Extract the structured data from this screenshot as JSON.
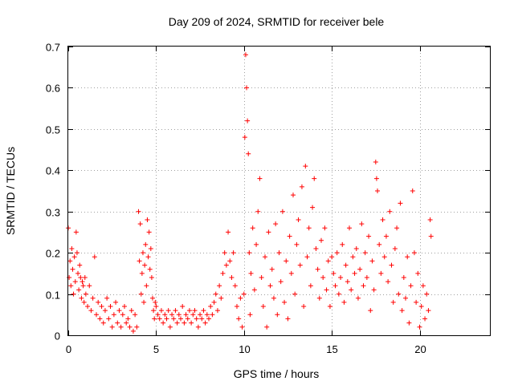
{
  "chart_data": {
    "type": "scatter",
    "title": "Day 209 of 2024, SRMTID for receiver bele",
    "xlabel": "GPS time / hours",
    "ylabel": "SRMTID / TECUs",
    "xlim": [
      0,
      24
    ],
    "ylim": [
      0,
      0.7
    ],
    "xticks": [
      0,
      5,
      10,
      15,
      20
    ],
    "yticks": [
      0,
      0.1,
      0.2,
      0.3,
      0.4,
      0.5,
      0.6,
      0.7
    ],
    "xtick_labels": [
      "0",
      "5",
      "10",
      "15",
      "20"
    ],
    "ytick_labels": [
      "0",
      "0.1",
      "0.2",
      "0.3",
      "0.4",
      "0.5",
      "0.6",
      "0.7"
    ],
    "grid": true,
    "marker": "+",
    "color": "#ff0000",
    "series": [
      {
        "name": "SRMTID",
        "points": [
          [
            0.0,
            0.26
          ],
          [
            0.05,
            0.14
          ],
          [
            0.1,
            0.18
          ],
          [
            0.15,
            0.12
          ],
          [
            0.2,
            0.21
          ],
          [
            0.25,
            0.16
          ],
          [
            0.3,
            0.1
          ],
          [
            0.35,
            0.19
          ],
          [
            0.4,
            0.13
          ],
          [
            0.45,
            0.25
          ],
          [
            0.5,
            0.2
          ],
          [
            0.55,
            0.15
          ],
          [
            0.6,
            0.11
          ],
          [
            0.65,
            0.17
          ],
          [
            0.7,
            0.14
          ],
          [
            0.75,
            0.09
          ],
          [
            0.8,
            0.13
          ],
          [
            0.85,
            0.12
          ],
          [
            0.9,
            0.08
          ],
          [
            0.95,
            0.14
          ],
          [
            1.0,
            0.1
          ],
          [
            1.1,
            0.07
          ],
          [
            1.2,
            0.12
          ],
          [
            1.3,
            0.06
          ],
          [
            1.4,
            0.09
          ],
          [
            1.5,
            0.19
          ],
          [
            1.6,
            0.05
          ],
          [
            1.7,
            0.08
          ],
          [
            1.8,
            0.04
          ],
          [
            1.9,
            0.07
          ],
          [
            2.0,
            0.03
          ],
          [
            2.1,
            0.06
          ],
          [
            2.2,
            0.09
          ],
          [
            2.3,
            0.04
          ],
          [
            2.4,
            0.07
          ],
          [
            2.5,
            0.02
          ],
          [
            2.6,
            0.05
          ],
          [
            2.7,
            0.08
          ],
          [
            2.8,
            0.03
          ],
          [
            2.9,
            0.06
          ],
          [
            3.0,
            0.02
          ],
          [
            3.1,
            0.05
          ],
          [
            3.2,
            0.07
          ],
          [
            3.3,
            0.03
          ],
          [
            3.4,
            0.04
          ],
          [
            3.5,
            0.02
          ],
          [
            3.6,
            0.06
          ],
          [
            3.7,
            0.01
          ],
          [
            3.8,
            0.05
          ],
          [
            3.9,
            0.02
          ],
          [
            4.0,
            0.3
          ],
          [
            4.05,
            0.18
          ],
          [
            4.1,
            0.27
          ],
          [
            4.15,
            0.1
          ],
          [
            4.2,
            0.15
          ],
          [
            4.25,
            0.2
          ],
          [
            4.3,
            0.08
          ],
          [
            4.35,
            0.17
          ],
          [
            4.4,
            0.22
          ],
          [
            4.45,
            0.12
          ],
          [
            4.5,
            0.28
          ],
          [
            4.55,
            0.19
          ],
          [
            4.6,
            0.25
          ],
          [
            4.65,
            0.16
          ],
          [
            4.7,
            0.21
          ],
          [
            4.75,
            0.14
          ],
          [
            4.8,
            0.09
          ],
          [
            4.85,
            0.06
          ],
          [
            4.9,
            0.04
          ],
          [
            4.95,
            0.08
          ],
          [
            5.0,
            0.07
          ],
          [
            5.1,
            0.05
          ],
          [
            5.2,
            0.04
          ],
          [
            5.3,
            0.06
          ],
          [
            5.4,
            0.03
          ],
          [
            5.5,
            0.05
          ],
          [
            5.6,
            0.04
          ],
          [
            5.7,
            0.06
          ],
          [
            5.8,
            0.02
          ],
          [
            5.9,
            0.05
          ],
          [
            6.0,
            0.04
          ],
          [
            6.1,
            0.06
          ],
          [
            6.2,
            0.03
          ],
          [
            6.3,
            0.05
          ],
          [
            6.4,
            0.04
          ],
          [
            6.5,
            0.07
          ],
          [
            6.6,
            0.03
          ],
          [
            6.7,
            0.05
          ],
          [
            6.8,
            0.04
          ],
          [
            6.9,
            0.06
          ],
          [
            7.0,
            0.03
          ],
          [
            7.1,
            0.05
          ],
          [
            7.2,
            0.06
          ],
          [
            7.3,
            0.04
          ],
          [
            7.4,
            0.02
          ],
          [
            7.5,
            0.05
          ],
          [
            7.6,
            0.04
          ],
          [
            7.7,
            0.06
          ],
          [
            7.8,
            0.03
          ],
          [
            7.9,
            0.05
          ],
          [
            8.0,
            0.04
          ],
          [
            8.1,
            0.07
          ],
          [
            8.2,
            0.05
          ],
          [
            8.3,
            0.08
          ],
          [
            8.4,
            0.1
          ],
          [
            8.5,
            0.06
          ],
          [
            8.6,
            0.12
          ],
          [
            8.7,
            0.09
          ],
          [
            8.8,
            0.15
          ],
          [
            8.9,
            0.2
          ],
          [
            9.0,
            0.17
          ],
          [
            9.1,
            0.25
          ],
          [
            9.2,
            0.18
          ],
          [
            9.3,
            0.14
          ],
          [
            9.4,
            0.2
          ],
          [
            9.5,
            0.12
          ],
          [
            9.6,
            0.07
          ],
          [
            9.7,
            0.04
          ],
          [
            9.8,
            0.09
          ],
          [
            9.9,
            0.02
          ],
          [
            10.0,
            0.1
          ],
          [
            10.05,
            0.48
          ],
          [
            10.1,
            0.68
          ],
          [
            10.15,
            0.6
          ],
          [
            10.2,
            0.52
          ],
          [
            10.25,
            0.44
          ],
          [
            10.3,
            0.2
          ],
          [
            10.35,
            0.05
          ],
          [
            10.4,
            0.15
          ],
          [
            10.5,
            0.26
          ],
          [
            10.6,
            0.11
          ],
          [
            10.7,
            0.22
          ],
          [
            10.8,
            0.3
          ],
          [
            10.9,
            0.38
          ],
          [
            11.0,
            0.14
          ],
          [
            11.1,
            0.07
          ],
          [
            11.2,
            0.19
          ],
          [
            11.3,
            0.02
          ],
          [
            11.4,
            0.25
          ],
          [
            11.5,
            0.12
          ],
          [
            11.6,
            0.16
          ],
          [
            11.7,
            0.09
          ],
          [
            11.8,
            0.27
          ],
          [
            11.9,
            0.05
          ],
          [
            12.0,
            0.2
          ],
          [
            12.1,
            0.13
          ],
          [
            12.2,
            0.3
          ],
          [
            12.3,
            0.08
          ],
          [
            12.4,
            0.18
          ],
          [
            12.5,
            0.04
          ],
          [
            12.6,
            0.24
          ],
          [
            12.7,
            0.15
          ],
          [
            12.8,
            0.34
          ],
          [
            12.9,
            0.1
          ],
          [
            13.0,
            0.22
          ],
          [
            13.1,
            0.28
          ],
          [
            13.2,
            0.17
          ],
          [
            13.3,
            0.36
          ],
          [
            13.4,
            0.07
          ],
          [
            13.5,
            0.41
          ],
          [
            13.6,
            0.19
          ],
          [
            13.7,
            0.26
          ],
          [
            13.8,
            0.12
          ],
          [
            13.9,
            0.31
          ],
          [
            14.0,
            0.38
          ],
          [
            14.1,
            0.21
          ],
          [
            14.2,
            0.16
          ],
          [
            14.3,
            0.09
          ],
          [
            14.4,
            0.23
          ],
          [
            14.5,
            0.14
          ],
          [
            14.6,
            0.26
          ],
          [
            14.7,
            0.11
          ],
          [
            14.8,
            0.18
          ],
          [
            14.9,
            0.07
          ],
          [
            15.0,
            0.19
          ],
          [
            15.1,
            0.15
          ],
          [
            15.2,
            0.12
          ],
          [
            15.3,
            0.2
          ],
          [
            15.4,
            0.1
          ],
          [
            15.5,
            0.14
          ],
          [
            15.6,
            0.22
          ],
          [
            15.7,
            0.08
          ],
          [
            15.8,
            0.17
          ],
          [
            15.9,
            0.13
          ],
          [
            16.0,
            0.26
          ],
          [
            16.1,
            0.11
          ],
          [
            16.2,
            0.19
          ],
          [
            16.3,
            0.15
          ],
          [
            16.4,
            0.21
          ],
          [
            16.5,
            0.09
          ],
          [
            16.6,
            0.16
          ],
          [
            16.7,
            0.27
          ],
          [
            16.8,
            0.12
          ],
          [
            16.9,
            0.2
          ],
          [
            17.0,
            0.14
          ],
          [
            17.1,
            0.24
          ],
          [
            17.2,
            0.06
          ],
          [
            17.3,
            0.18
          ],
          [
            17.4,
            0.11
          ],
          [
            17.5,
            0.42
          ],
          [
            17.55,
            0.38
          ],
          [
            17.6,
            0.35
          ],
          [
            17.7,
            0.22
          ],
          [
            17.8,
            0.15
          ],
          [
            17.9,
            0.28
          ],
          [
            18.0,
            0.19
          ],
          [
            18.1,
            0.24
          ],
          [
            18.2,
            0.13
          ],
          [
            18.3,
            0.3
          ],
          [
            18.4,
            0.17
          ],
          [
            18.5,
            0.08
          ],
          [
            18.6,
            0.21
          ],
          [
            18.7,
            0.26
          ],
          [
            18.8,
            0.1
          ],
          [
            18.9,
            0.32
          ],
          [
            19.0,
            0.06
          ],
          [
            19.1,
            0.14
          ],
          [
            19.2,
            0.09
          ],
          [
            19.3,
            0.19
          ],
          [
            19.4,
            0.03
          ],
          [
            19.5,
            0.12
          ],
          [
            19.6,
            0.35
          ],
          [
            19.7,
            0.2
          ],
          [
            19.8,
            0.08
          ],
          [
            19.9,
            0.15
          ],
          [
            20.0,
            0.02
          ],
          [
            20.1,
            0.07
          ],
          [
            20.2,
            0.12
          ],
          [
            20.3,
            0.04
          ],
          [
            20.4,
            0.1
          ],
          [
            20.5,
            0.06
          ],
          [
            20.6,
            0.28
          ],
          [
            20.65,
            0.24
          ]
        ]
      }
    ]
  }
}
